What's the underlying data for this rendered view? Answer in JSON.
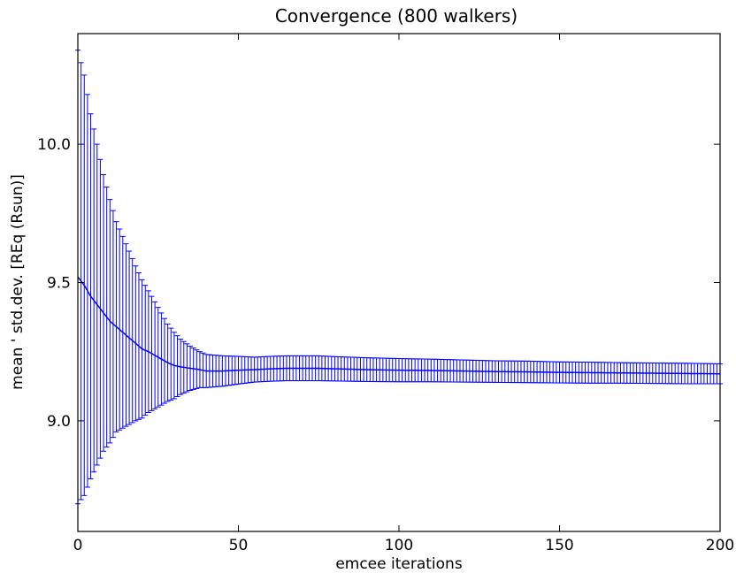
{
  "chart_data": {
    "type": "line",
    "title": "Convergence (800 walkers)",
    "xlabel": "emcee iterations",
    "ylabel": "mean ' std.dev. [REq (Rsun)]",
    "xlim": [
      0,
      200
    ],
    "ylim": [
      8.6,
      10.4
    ],
    "x_ticks": [
      "0",
      "50",
      "100",
      "150",
      "200"
    ],
    "y_ticks": [
      "9.0",
      "9.5",
      "10.0"
    ],
    "grid": false,
    "legend": "none",
    "series_color": "#0000ff",
    "series": [
      {
        "x": [
          0,
          2,
          4,
          6,
          8,
          10,
          12,
          15,
          18,
          20,
          22,
          25,
          28,
          30,
          32,
          35,
          38,
          40,
          45,
          50,
          55,
          60,
          65,
          70,
          75,
          80,
          90,
          100,
          110,
          120,
          130,
          140,
          150,
          160,
          170,
          180,
          190,
          200
        ],
        "mean": [
          9.52,
          9.49,
          9.45,
          9.42,
          9.39,
          9.36,
          9.34,
          9.31,
          9.28,
          9.26,
          9.25,
          9.23,
          9.21,
          9.2,
          9.195,
          9.19,
          9.185,
          9.18,
          9.18,
          9.183,
          9.185,
          9.188,
          9.19,
          9.19,
          9.19,
          9.188,
          9.185,
          9.183,
          9.182,
          9.18,
          9.178,
          9.177,
          9.175,
          9.174,
          9.173,
          9.172,
          9.171,
          9.17
        ],
        "std": [
          0.82,
          0.76,
          0.66,
          0.58,
          0.5,
          0.44,
          0.38,
          0.33,
          0.28,
          0.25,
          0.22,
          0.18,
          0.14,
          0.12,
          0.1,
          0.08,
          0.065,
          0.06,
          0.055,
          0.05,
          0.045,
          0.045,
          0.045,
          0.045,
          0.045,
          0.044,
          0.043,
          0.042,
          0.041,
          0.04,
          0.039,
          0.039,
          0.038,
          0.038,
          0.037,
          0.037,
          0.037,
          0.036
        ]
      }
    ]
  }
}
